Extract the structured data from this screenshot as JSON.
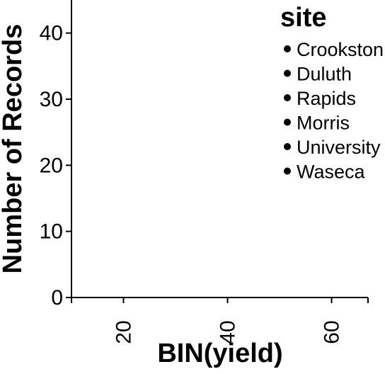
{
  "chart_data": {
    "type": "scatter",
    "title": "",
    "xlabel": "BIN(yield)",
    "ylabel": "Number of Records",
    "x_ticks": [
      "20",
      "40",
      "60"
    ],
    "y_ticks": [
      "0",
      "10",
      "20",
      "30",
      "40"
    ],
    "xlim": [
      10,
      67
    ],
    "ylim": [
      0,
      45
    ],
    "grid": false,
    "legend": {
      "title": "site",
      "position": "top-right",
      "entries": [
        {
          "label": "Crookston",
          "color": "#000000"
        },
        {
          "label": "Duluth",
          "color": "#000000"
        },
        {
          "label": "Rapids",
          "color": "#000000"
        },
        {
          "label": "Morris",
          "color": "#000000"
        },
        {
          "label": "University",
          "color": "#000000"
        },
        {
          "label": "Waseca",
          "color": "#000000"
        }
      ]
    },
    "series": []
  }
}
